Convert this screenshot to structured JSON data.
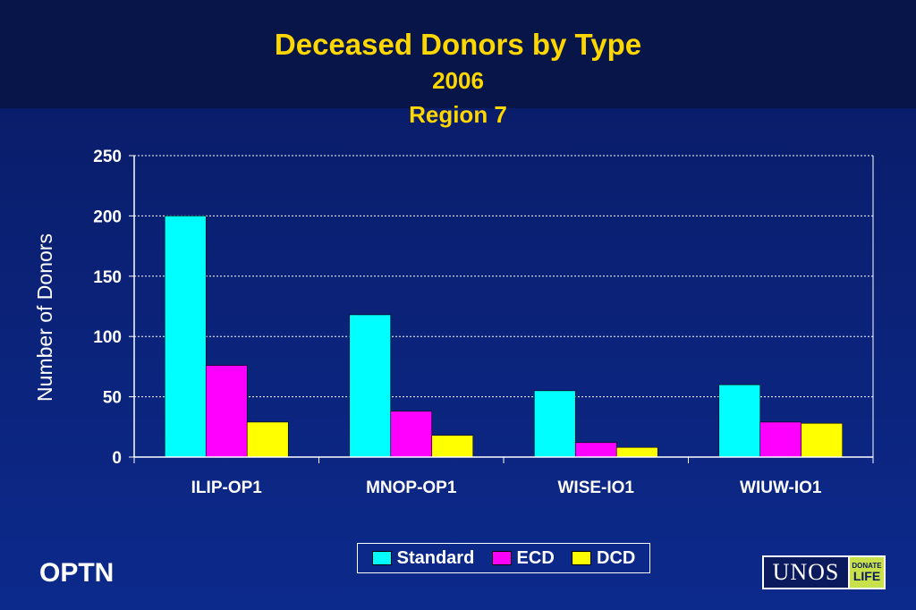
{
  "title": {
    "line1": "Deceased Donors by Type",
    "line2": "2006",
    "line3": "Region 7"
  },
  "colors": {
    "title": "#ffd700",
    "standard": "#00ffff",
    "ecd": "#ff00ff",
    "dcd": "#ffff00"
  },
  "chart_data": {
    "type": "bar",
    "ylabel": "Number of Donors",
    "xlabel": "",
    "ylim": [
      0,
      250
    ],
    "yticks": [
      0,
      50,
      100,
      150,
      200,
      250
    ],
    "grid": true,
    "legend_placement": "bottom",
    "categories": [
      "ILIP-OP1",
      "MNOP-OP1",
      "WISE-IO1",
      "WIUW-IO1"
    ],
    "series": [
      {
        "name": "Standard",
        "color": "#00ffff",
        "values": [
          200,
          118,
          55,
          60
        ]
      },
      {
        "name": "ECD",
        "color": "#ff00ff",
        "values": [
          76,
          38,
          12,
          29
        ]
      },
      {
        "name": "DCD",
        "color": "#ffff00",
        "values": [
          29,
          18,
          8,
          28
        ]
      }
    ]
  },
  "footer": {
    "optn": "OPTN",
    "unos": "UNOS",
    "donate_top": "DONATE",
    "donate_bottom": "LIFE"
  }
}
